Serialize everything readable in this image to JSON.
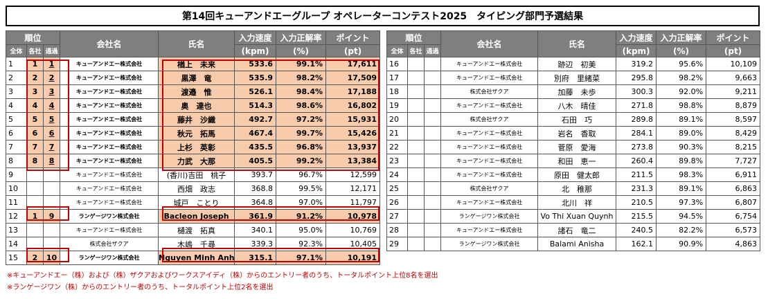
{
  "title": "第14回キューアンドエーグループ オペレーターコンテスト2025　タイピング部門予選結果",
  "headers": {
    "rank": "順位",
    "rank_all": "全体",
    "rank_company": "各社",
    "rank_pass": "通過",
    "company": "会社名",
    "name": "氏名",
    "speed": "入力速度",
    "speed_unit": "(kpm)",
    "accuracy": "入力正解率",
    "accuracy_unit": "(%)",
    "points": "ポイント",
    "points_unit": "(pt)"
  },
  "left_rows": [
    {
      "all": "1",
      "co": "1",
      "pass": "1",
      "company": "キューアンドエー株式会社",
      "name": "楢上　未来",
      "speed": "533.6",
      "acc": "99.1%",
      "pts": "17,611"
    },
    {
      "all": "2",
      "co": "2",
      "pass": "2",
      "company": "キューアンドエー株式会社",
      "name": "黒澤　竜",
      "speed": "535.9",
      "acc": "98.2%",
      "pts": "17,509"
    },
    {
      "all": "3",
      "co": "3",
      "pass": "3",
      "company": "キューアンドエー株式会社",
      "name": "渡邉　惟",
      "speed": "526.1",
      "acc": "98.4%",
      "pts": "17,188"
    },
    {
      "all": "4",
      "co": "4",
      "pass": "4",
      "company": "キューアンドエー株式会社",
      "name": "奥　達也",
      "speed": "514.3",
      "acc": "98.6%",
      "pts": "16,802"
    },
    {
      "all": "5",
      "co": "5",
      "pass": "5",
      "company": "キューアンドエー株式会社",
      "name": "藤井　沙織",
      "speed": "492.7",
      "acc": "97.2%",
      "pts": "15,931"
    },
    {
      "all": "6",
      "co": "6",
      "pass": "6",
      "company": "キューアンドエー株式会社",
      "name": "秋元　拓馬",
      "speed": "467.4",
      "acc": "99.7%",
      "pts": "15,426"
    },
    {
      "all": "7",
      "co": "7",
      "pass": "7",
      "company": "キューアンドエー株式会社",
      "name": "上杉　英彰",
      "speed": "435.5",
      "acc": "96.8%",
      "pts": "13,937"
    },
    {
      "all": "8",
      "co": "8",
      "pass": "8",
      "company": "キューアンドエー株式会社",
      "name": "力武　大那",
      "speed": "405.5",
      "acc": "99.2%",
      "pts": "13,384"
    },
    {
      "all": "9",
      "co": "",
      "pass": "",
      "company": "キューアンドエー株式会社",
      "name": "(香川)吉田　桃子",
      "speed": "393.7",
      "acc": "96.7%",
      "pts": "12,599"
    },
    {
      "all": "10",
      "co": "",
      "pass": "",
      "company": "キューアンドエー株式会社",
      "name": "西畑　政志",
      "speed": "368.8",
      "acc": "99.5%",
      "pts": "12,171"
    },
    {
      "all": "11",
      "co": "",
      "pass": "",
      "company": "キューアンドエー株式会社",
      "name": "城戸　ことり",
      "speed": "364.8",
      "acc": "97.0%",
      "pts": "11,797"
    },
    {
      "all": "12",
      "co": "1",
      "pass": "9",
      "company": "ランゲージワン株式会社",
      "name": "Bacleon Joseph",
      "speed": "361.9",
      "acc": "91.2%",
      "pts": "10,978"
    },
    {
      "all": "13",
      "co": "",
      "pass": "",
      "company": "キューアンドエー株式会社",
      "name": "樋渡　拓真",
      "speed": "340.1",
      "acc": "95.0%",
      "pts": "10,769"
    },
    {
      "all": "14",
      "co": "",
      "pass": "",
      "company": "株式会社ザクア",
      "name": "木嶋　千尋",
      "speed": "339.3",
      "acc": "92.3%",
      "pts": "10,405"
    },
    {
      "all": "15",
      "co": "2",
      "pass": "10",
      "company": "ランゲージワン株式会社",
      "name": "Nguyen Minh Anh",
      "speed": "315.1",
      "acc": "97.1%",
      "pts": "10,191"
    }
  ],
  "right_rows": [
    {
      "all": "16",
      "co": "",
      "pass": "",
      "company": "キューアンドエー株式会社",
      "name": "跡辺　初美",
      "speed": "319.2",
      "acc": "95.6%",
      "pts": "10,109"
    },
    {
      "all": "17",
      "co": "",
      "pass": "",
      "company": "キューアンドエー株式会社",
      "name": "別府　里緒菜",
      "speed": "295.8",
      "acc": "98.2%",
      "pts": "9,663"
    },
    {
      "all": "18",
      "co": "",
      "pass": "",
      "company": "株式会社ザクア",
      "name": "加藤　未歩",
      "speed": "300.3",
      "acc": "92.0%",
      "pts": "9,211"
    },
    {
      "all": "19",
      "co": "",
      "pass": "",
      "company": "キューアンドエー株式会社",
      "name": "八木　晴佳",
      "speed": "271.8",
      "acc": "98.8%",
      "pts": "8,879"
    },
    {
      "all": "20",
      "co": "",
      "pass": "",
      "company": "株式会社ザクア",
      "name": "石田　巧",
      "speed": "289.8",
      "acc": "89.1%",
      "pts": "8,597"
    },
    {
      "all": "21",
      "co": "",
      "pass": "",
      "company": "キューアンドエー株式会社",
      "name": "岩名　香取",
      "speed": "284.1",
      "acc": "89.0%",
      "pts": "8,429"
    },
    {
      "all": "22",
      "co": "",
      "pass": "",
      "company": "キューアンドエー株式会社",
      "name": "菅原　愛海",
      "speed": "273.8",
      "acc": "90.3%",
      "pts": "8,215"
    },
    {
      "all": "23",
      "co": "",
      "pass": "",
      "company": "キューアンドエー株式会社",
      "name": "和田　恵一",
      "speed": "260.4",
      "acc": "89.8%",
      "pts": "7,727"
    },
    {
      "all": "24",
      "co": "",
      "pass": "",
      "company": "キューアンドエー株式会社",
      "name": "原田　健太郎",
      "speed": "211.5",
      "acc": "98.3%",
      "pts": "6,911"
    },
    {
      "all": "25",
      "co": "",
      "pass": "",
      "company": "株式会社ザクア",
      "name": "北　稚那",
      "speed": "231.3",
      "acc": "89.1%",
      "pts": "6,863"
    },
    {
      "all": "26",
      "co": "",
      "pass": "",
      "company": "キューアンドエー株式会社",
      "name": "北川　祥",
      "speed": "210.5",
      "acc": "97.3%",
      "pts": "6,807"
    },
    {
      "all": "27",
      "co": "",
      "pass": "",
      "company": "ランゲージワン株式会社",
      "name": "Vo Thi Xuan Quynh",
      "speed": "215.5",
      "acc": "94.5%",
      "pts": "6,754"
    },
    {
      "all": "28",
      "co": "",
      "pass": "",
      "company": "キューアンドエー株式会社",
      "name": "諸石　竜二",
      "speed": "240.5",
      "acc": "82.2%",
      "pts": "6,573"
    },
    {
      "all": "29",
      "co": "",
      "pass": "",
      "company": "ランゲージワン株式会社",
      "name": "Balami Anisha",
      "speed": "162.1",
      "acc": "90.9%",
      "pts": "4,863"
    }
  ],
  "notes": [
    "※キューアンドエー（株）および（株）ザクアおよびワークスアイディ（株）からのエントリー者のうち、トータルポイント上位8名を選出",
    "※ランゲージワン（株）からのエントリー者のうち、トータルポイント上位2名を選出"
  ],
  "colors": {
    "highlight": "#f8cbad",
    "frame": "#c00000",
    "header": "#7f7f7f",
    "note": "#c00000"
  }
}
